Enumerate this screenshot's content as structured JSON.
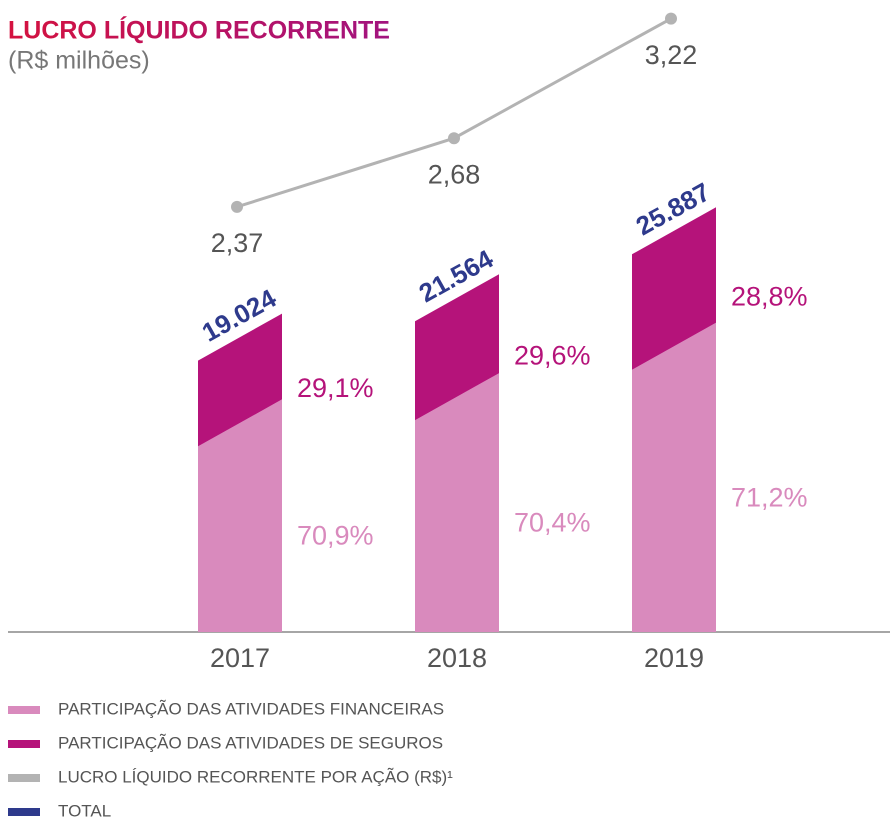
{
  "chart_data": {
    "type": "bar",
    "stacked": true,
    "title": "LUCRO LÍQUIDO RECORRENTE",
    "subtitle": "(R$ milhões)",
    "categories": [
      "2017",
      "2018",
      "2019"
    ],
    "ylim": [
      0,
      40000
    ],
    "y2lim": [
      0.45,
      3.25
    ],
    "series": [
      {
        "name": "PARTICIPAÇÃO DAS ATIVIDADES FINANCEIRAS",
        "color": "#d98abd",
        "values": [
          70.9,
          70.4,
          71.2
        ],
        "value_labels": [
          "70,9%",
          "70,4%",
          "71,2%"
        ]
      },
      {
        "name": "PARTICIPAÇÃO DAS ATIVIDADES DE SEGUROS",
        "color": "#b5137a",
        "values": [
          29.1,
          29.6,
          28.8
        ],
        "value_labels": [
          "29,1%",
          "29,6%",
          "28,8%"
        ]
      },
      {
        "name": "LUCRO LÍQUIDO RECORRENTE POR AÇÃO (R$)¹",
        "color": "#b3b3b3",
        "type": "line",
        "axis": "y2",
        "values": [
          2.37,
          2.68,
          3.22
        ],
        "value_labels": [
          "2,37",
          "2,68",
          "3,22"
        ]
      },
      {
        "name": "TOTAL",
        "color": "#2e3a8c",
        "values": [
          19024,
          21564,
          25887
        ],
        "value_labels": [
          "19.024",
          "21.564",
          "25.887"
        ]
      }
    ]
  }
}
